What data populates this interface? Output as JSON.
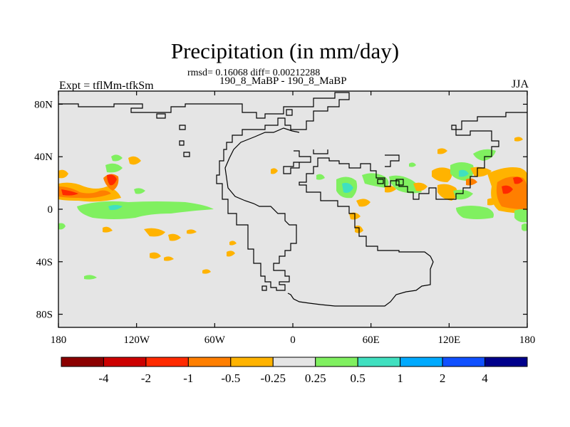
{
  "title": "Precipitation (in mm/day)",
  "stats_line": "rmsd= 0.16068 diff= 0.00212288",
  "subtitle": "190_8_MaBP - 190_8_MaBP",
  "left_label": "Expt = tflMm-tfkSm",
  "right_label": "JJA",
  "map": {
    "lon_range": [
      -180,
      180
    ],
    "lat_range": [
      -90,
      90
    ],
    "x_ticks": [
      {
        "lon": -180,
        "label": "180"
      },
      {
        "lon": -120,
        "label": "120W"
      },
      {
        "lon": -60,
        "label": "60W"
      },
      {
        "lon": 0,
        "label": "0"
      },
      {
        "lon": 60,
        "label": "60E"
      },
      {
        "lon": 120,
        "label": "120E"
      },
      {
        "lon": 180,
        "label": "180"
      }
    ],
    "y_ticks": [
      {
        "lat": 80,
        "label": "80N"
      },
      {
        "lat": 40,
        "label": "40N"
      },
      {
        "lat": 0,
        "label": "0"
      },
      {
        "lat": -40,
        "label": "40S"
      },
      {
        "lat": -80,
        "label": "80S"
      }
    ]
  },
  "legend": {
    "colors": [
      "#8b0000",
      "#cc0000",
      "#ff2a00",
      "#ff7f00",
      "#ffb300",
      "#e5e5e5",
      "#80f060",
      "#40e0c0",
      "#00aaff",
      "#1050ff",
      "#00008b"
    ],
    "labels": [
      "-4",
      "-2",
      "-1",
      "-0.5",
      "-0.25",
      "0.25",
      "0.5",
      "1",
      "2",
      "4"
    ]
  }
}
